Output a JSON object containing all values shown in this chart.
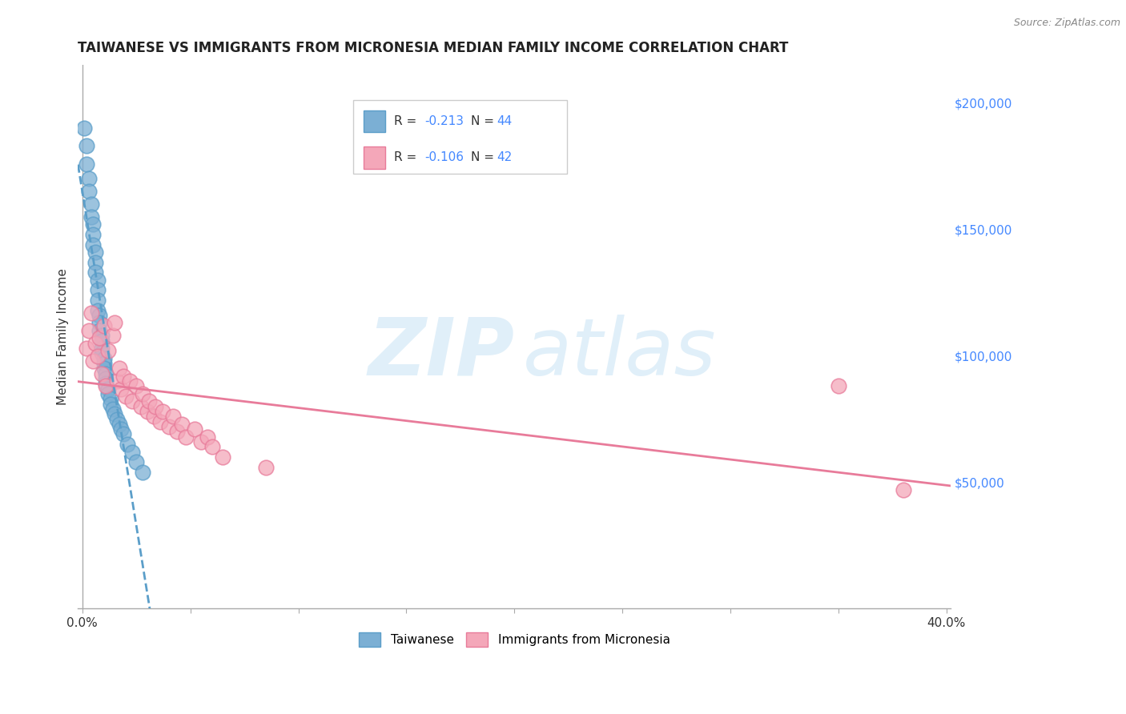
{
  "title": "TAIWANESE VS IMMIGRANTS FROM MICRONESIA MEDIAN FAMILY INCOME CORRELATION CHART",
  "source": "Source: ZipAtlas.com",
  "ylabel": "Median Family Income",
  "xlim": [
    -0.002,
    0.402
  ],
  "ylim": [
    0,
    215000
  ],
  "background_color": "#ffffff",
  "grid_color": "#dddddd",
  "blue_dot_color": "#7bafd4",
  "blue_edge_color": "#5b9ec9",
  "pink_dot_color": "#f4a7b9",
  "pink_edge_color": "#e87b9a",
  "blue_line_color": "#5b9ec9",
  "pink_line_color": "#e87b9a",
  "legend_box_color": "#f0f0f0",
  "right_tick_color": "#4488ff",
  "taiwanese_x": [
    0.001,
    0.002,
    0.002,
    0.003,
    0.003,
    0.004,
    0.004,
    0.005,
    0.005,
    0.005,
    0.006,
    0.006,
    0.006,
    0.007,
    0.007,
    0.007,
    0.007,
    0.008,
    0.008,
    0.008,
    0.009,
    0.009,
    0.009,
    0.009,
    0.01,
    0.01,
    0.01,
    0.011,
    0.011,
    0.011,
    0.012,
    0.012,
    0.013,
    0.013,
    0.014,
    0.015,
    0.016,
    0.017,
    0.018,
    0.019,
    0.021,
    0.023,
    0.025,
    0.028
  ],
  "taiwanese_y": [
    190000,
    183000,
    176000,
    170000,
    165000,
    160000,
    155000,
    152000,
    148000,
    144000,
    141000,
    137000,
    133000,
    130000,
    126000,
    122000,
    118000,
    116000,
    113000,
    110000,
    108000,
    106000,
    103000,
    101000,
    99000,
    97000,
    95000,
    93000,
    91000,
    89000,
    87000,
    85000,
    83000,
    81000,
    79000,
    77000,
    75000,
    73000,
    71000,
    69000,
    65000,
    62000,
    58000,
    54000
  ],
  "micronesia_x": [
    0.002,
    0.003,
    0.004,
    0.005,
    0.006,
    0.007,
    0.008,
    0.009,
    0.01,
    0.011,
    0.012,
    0.014,
    0.015,
    0.016,
    0.017,
    0.018,
    0.019,
    0.02,
    0.022,
    0.023,
    0.025,
    0.027,
    0.028,
    0.03,
    0.031,
    0.033,
    0.034,
    0.036,
    0.037,
    0.04,
    0.042,
    0.044,
    0.046,
    0.048,
    0.052,
    0.055,
    0.058,
    0.06,
    0.065,
    0.085,
    0.35,
    0.38
  ],
  "micronesia_y": [
    103000,
    110000,
    117000,
    98000,
    105000,
    100000,
    107000,
    93000,
    112000,
    88000,
    102000,
    108000,
    113000,
    90000,
    95000,
    87000,
    92000,
    84000,
    90000,
    82000,
    88000,
    80000,
    85000,
    78000,
    82000,
    76000,
    80000,
    74000,
    78000,
    72000,
    76000,
    70000,
    73000,
    68000,
    71000,
    66000,
    68000,
    64000,
    60000,
    56000,
    88000,
    47000
  ]
}
